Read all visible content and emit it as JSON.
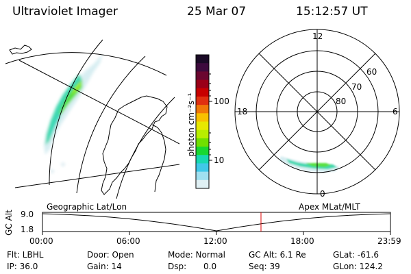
{
  "header": {
    "instrument": "Ultraviolet Imager",
    "date": "25 Mar 07",
    "time": "15:12:57 UT"
  },
  "colorbar": {
    "unit_label": "photon cm⁻²s⁻¹",
    "ticks": [
      "100",
      "10"
    ],
    "colors": [
      "#1a0a26",
      "#3d0a3d",
      "#6b0630",
      "#9a0018",
      "#c80000",
      "#e03010",
      "#f07808",
      "#f8c000",
      "#e8e800",
      "#b8ee00",
      "#70e000",
      "#18d830",
      "#18d8b0",
      "#40c8e8",
      "#a0e0f0",
      "#e0f0f4"
    ]
  },
  "geo_panel": {
    "label": "Geographic Lat/Lon"
  },
  "polar_panel": {
    "label": "Apex MLat/MLT",
    "mlt_labels": {
      "top": "12",
      "left": "18",
      "right": "6",
      "bottom": "0"
    },
    "lat_labels": [
      "60",
      "70",
      "80"
    ]
  },
  "altitude_plot": {
    "ylabel": "GC Alt",
    "yticks": [
      "9.0",
      "1.8"
    ],
    "xticks": [
      "00:00",
      "06:00",
      "12:00",
      "18:00",
      "23:59"
    ],
    "cursor_color": "#e00000",
    "cursor_time": "15:12:57"
  },
  "info": {
    "flt": "Flt: LBHL",
    "ip": "IP: 36.0",
    "door": "Door: Open",
    "gain": "Gain: 14",
    "mode": "Mode: Normal",
    "dsp_label": "Dsp:",
    "dsp_value": "0.0",
    "gc_alt": "GC Alt: 6.1 Re",
    "seq": "Seq: 39",
    "glat": "GLat: -61.6",
    "glon": "GLon: 124.2"
  }
}
